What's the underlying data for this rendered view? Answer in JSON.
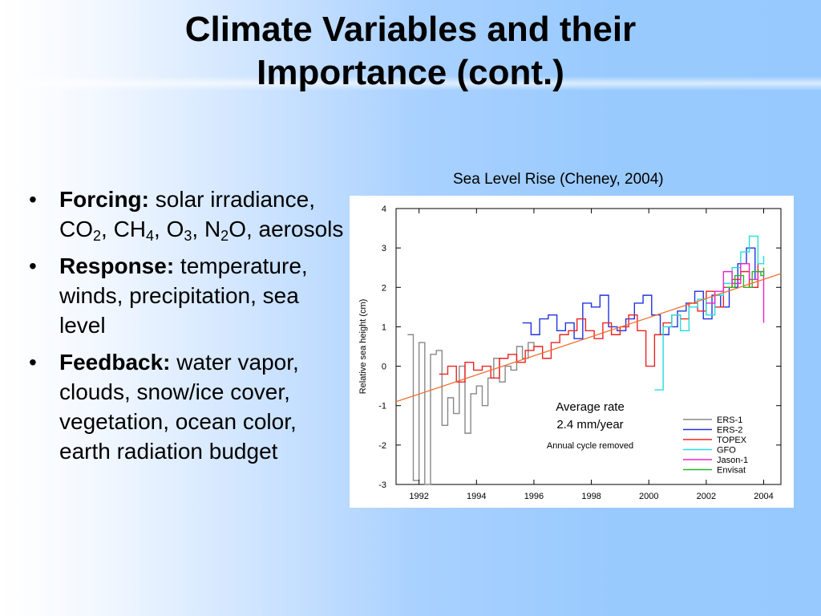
{
  "slide": {
    "title_line1": "Climate Variables and their",
    "title_line2": "Importance (cont.)"
  },
  "bullets": [
    {
      "bullet": "•",
      "label": "Forcing:",
      "text": " solar irradiance, CO",
      "sub1": "2",
      "text2": ", CH",
      "sub2": "4",
      "text3": ", O",
      "sub3": "3",
      "text4": ", N",
      "sub4": "2",
      "text5": "O, aerosols"
    },
    {
      "bullet": "•",
      "label": "Response:",
      "text": " temperature, winds, precipitation, sea level"
    },
    {
      "bullet": "•",
      "label": "Feedback:",
      "text": " water vapor, clouds, snow/ice cover, vegetation, ocean color, earth radiation budget"
    }
  ],
  "figure": {
    "caption": "Sea Level Rise (Cheney, 2004)"
  },
  "chart_data": {
    "type": "line",
    "ylabel": "Relative sea height (cm)",
    "xlabel": "",
    "xlim": [
      1991.2,
      2004.6
    ],
    "ylim": [
      -3,
      4
    ],
    "xticks": [
      1992,
      1994,
      1996,
      1998,
      2000,
      2002,
      2004
    ],
    "yticks": [
      -3,
      -2,
      -1,
      0,
      1,
      2,
      3,
      4
    ],
    "annotations": [
      "Average rate",
      "2.4 mm/year",
      "Annual cycle removed"
    ],
    "trend": {
      "x": [
        1991.2,
        2004.6
      ],
      "y": [
        -0.9,
        2.35
      ]
    },
    "legend_position": "bottom-right",
    "series": [
      {
        "name": "ERS-1",
        "color": "#888888",
        "x": [
          1991.6,
          1991.8,
          1992.0,
          1992.2,
          1992.4,
          1992.6,
          1992.8,
          1993.0,
          1993.2,
          1993.4,
          1993.6,
          1993.8,
          1994.0,
          1994.2,
          1994.4,
          1994.6,
          1994.8,
          1995.0,
          1995.2,
          1995.4,
          1995.6,
          1995.8,
          1996.0
        ],
        "y": [
          0.8,
          -2.9,
          0.6,
          -3.0,
          0.3,
          0.4,
          -1.5,
          -0.8,
          -1.2,
          0.0,
          -1.7,
          -0.7,
          -0.5,
          -1.0,
          -0.3,
          0.2,
          -0.4,
          0.0,
          -0.1,
          0.5,
          0.2,
          0.6,
          0.5
        ]
      },
      {
        "name": "ERS-2",
        "color": "#2233dd",
        "x": [
          1995.6,
          1995.9,
          1996.2,
          1996.5,
          1996.8,
          1997.1,
          1997.4,
          1997.7,
          1998.0,
          1998.3,
          1998.6,
          1998.9,
          1999.2,
          1999.5,
          1999.8,
          2000.1,
          2000.4,
          2000.7,
          2001.0,
          2001.3,
          2001.6,
          2001.9,
          2002.2,
          2002.5,
          2002.8,
          2003.1,
          2003.4,
          2003.7
        ],
        "y": [
          1.1,
          0.8,
          1.2,
          1.3,
          0.9,
          1.1,
          0.7,
          1.6,
          1.5,
          1.8,
          1.0,
          0.9,
          1.2,
          1.6,
          1.8,
          1.3,
          0.8,
          1.0,
          1.4,
          1.6,
          1.9,
          1.2,
          1.8,
          1.5,
          2.0,
          2.6,
          3.0,
          2.2
        ]
      },
      {
        "name": "TOPEX",
        "color": "#ee2222",
        "x": [
          1992.7,
          1993.0,
          1993.3,
          1993.6,
          1993.9,
          1994.2,
          1994.5,
          1994.8,
          1995.1,
          1995.4,
          1995.7,
          1996.0,
          1996.3,
          1996.6,
          1996.9,
          1997.2,
          1997.5,
          1997.8,
          1998.1,
          1998.4,
          1998.7,
          1999.0,
          1999.3,
          1999.6,
          1999.9,
          2000.2,
          2000.5,
          2000.8,
          2001.1,
          2001.4,
          2001.7,
          2002.0,
          2002.3,
          2002.6,
          2002.9,
          2003.2,
          2003.5,
          2003.8
        ],
        "y": [
          -0.2,
          0.0,
          -0.4,
          0.1,
          -0.1,
          0.0,
          -0.3,
          0.2,
          0.3,
          0.1,
          0.4,
          0.5,
          0.2,
          0.6,
          0.8,
          0.9,
          1.2,
          0.9,
          0.7,
          1.1,
          0.8,
          1.0,
          1.3,
          0.9,
          0.0,
          0.8,
          1.1,
          1.3,
          1.2,
          1.6,
          1.4,
          1.9,
          1.5,
          2.0,
          2.2,
          2.4,
          2.0,
          2.6
        ]
      },
      {
        "name": "GFO",
        "color": "#22dddd",
        "x": [
          2000.2,
          2000.5,
          2000.8,
          2001.1,
          2001.4,
          2001.7,
          2002.0,
          2002.3,
          2002.6,
          2002.9,
          2003.2,
          2003.5,
          2003.8,
          2004.0
        ],
        "y": [
          -0.6,
          1.0,
          1.3,
          0.9,
          1.5,
          1.7,
          1.3,
          1.8,
          2.1,
          2.5,
          2.9,
          3.3,
          2.6,
          2.8
        ]
      },
      {
        "name": "Jason-1",
        "color": "#ee22cc",
        "x": [
          2002.0,
          2002.3,
          2002.6,
          2002.9,
          2003.2,
          2003.5,
          2003.8,
          2004.0
        ],
        "y": [
          1.6,
          1.9,
          2.4,
          2.1,
          2.6,
          2.2,
          2.4,
          1.1
        ]
      },
      {
        "name": "Envisat",
        "color": "#22bb22",
        "x": [
          2002.7,
          2003.0,
          2003.3,
          2003.6,
          2003.9,
          2004.0
        ],
        "y": [
          2.0,
          2.3,
          2.0,
          2.4,
          2.3,
          2.5
        ]
      }
    ]
  },
  "colors": {
    "trend": "#f07030",
    "title": "#000000",
    "background_accent": "#99cafe"
  }
}
